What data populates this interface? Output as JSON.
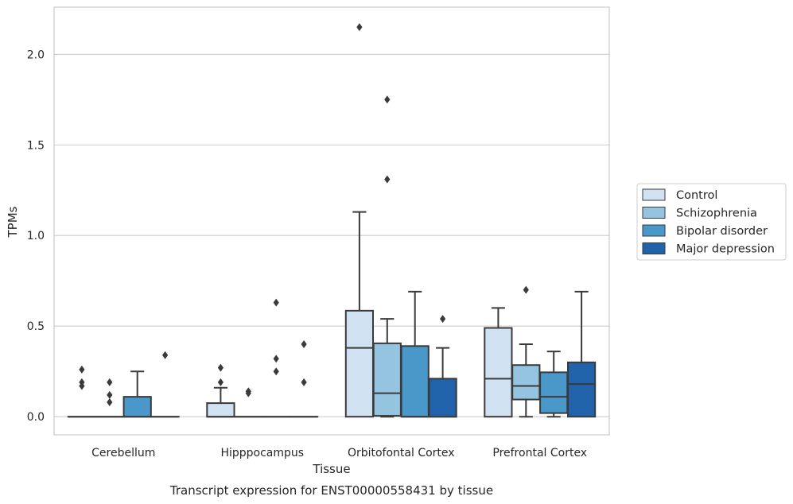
{
  "chart_data": {
    "type": "box",
    "caption": "Transcript expression for ENST00000558431 by tissue",
    "xlabel": "Tissue",
    "ylabel": "TPMs",
    "ylim": [
      -0.1,
      2.26
    ],
    "yticks": [
      0.0,
      0.5,
      1.0,
      1.5,
      2.0
    ],
    "ytick_labels": [
      "0.0",
      "0.5",
      "1.0",
      "1.5",
      "2.0"
    ],
    "grid": true,
    "legend_placement": "right",
    "categories": [
      "Cerebellum",
      "Hipppocampus",
      "Orbitofontal Cortex",
      "Prefrontal Cortex"
    ],
    "series": [
      {
        "name": "Control",
        "color": "#d0e1f2",
        "boxes": [
          {
            "q1": 0,
            "median": 0,
            "q3": 0,
            "whislo": 0,
            "whishi": 0,
            "fliers": [
              0.26,
              0.19,
              0.17
            ]
          },
          {
            "q1": 0,
            "median": 0,
            "q3": 0.075,
            "whislo": 0,
            "whishi": 0.16,
            "fliers": [
              0.27,
              0.19
            ]
          },
          {
            "q1": 0,
            "median": 0.38,
            "q3": 0.585,
            "whislo": 0,
            "whishi": 1.13,
            "fliers": [
              2.15
            ]
          },
          {
            "q1": 0,
            "median": 0.21,
            "q3": 0.49,
            "whislo": 0,
            "whishi": 0.6,
            "fliers": []
          }
        ]
      },
      {
        "name": "Schizophrenia",
        "color": "#94c4df",
        "boxes": [
          {
            "q1": 0,
            "median": 0,
            "q3": 0,
            "whislo": 0,
            "whishi": 0,
            "fliers": [
              0.19,
              0.12,
              0.08
            ]
          },
          {
            "q1": 0,
            "median": 0,
            "q3": 0,
            "whislo": 0,
            "whishi": 0,
            "fliers": [
              0.14,
              0.13
            ]
          },
          {
            "q1": 0.005,
            "median": 0.13,
            "q3": 0.405,
            "whislo": 0,
            "whishi": 0.54,
            "fliers": [
              1.75,
              1.31
            ]
          },
          {
            "q1": 0.095,
            "median": 0.17,
            "q3": 0.285,
            "whislo": 0,
            "whishi": 0.4,
            "fliers": [
              0.7
            ]
          }
        ]
      },
      {
        "name": "Bipolar disorder",
        "color": "#4a98c9",
        "boxes": [
          {
            "q1": 0,
            "median": 0,
            "q3": 0.11,
            "whislo": 0,
            "whishi": 0.25,
            "fliers": []
          },
          {
            "q1": 0,
            "median": 0,
            "q3": 0,
            "whislo": 0,
            "whishi": 0,
            "fliers": [
              0.63,
              0.32,
              0.25
            ]
          },
          {
            "q1": 0,
            "median": 0,
            "q3": 0.39,
            "whislo": 0,
            "whishi": 0.69,
            "fliers": []
          },
          {
            "q1": 0.02,
            "median": 0.11,
            "q3": 0.245,
            "whislo": 0,
            "whishi": 0.36,
            "fliers": []
          }
        ]
      },
      {
        "name": "Major depression",
        "color": "#2163aa",
        "boxes": [
          {
            "q1": 0,
            "median": 0,
            "q3": 0,
            "whislo": 0,
            "whishi": 0,
            "fliers": [
              0.34
            ]
          },
          {
            "q1": 0,
            "median": 0,
            "q3": 0,
            "whislo": 0,
            "whishi": 0,
            "fliers": [
              0.4,
              0.19
            ]
          },
          {
            "q1": 0,
            "median": 0,
            "q3": 0.21,
            "whislo": 0,
            "whishi": 0.38,
            "fliers": [
              0.54
            ]
          },
          {
            "q1": 0,
            "median": 0.18,
            "q3": 0.3,
            "whislo": 0,
            "whishi": 0.69,
            "fliers": []
          }
        ]
      }
    ]
  }
}
